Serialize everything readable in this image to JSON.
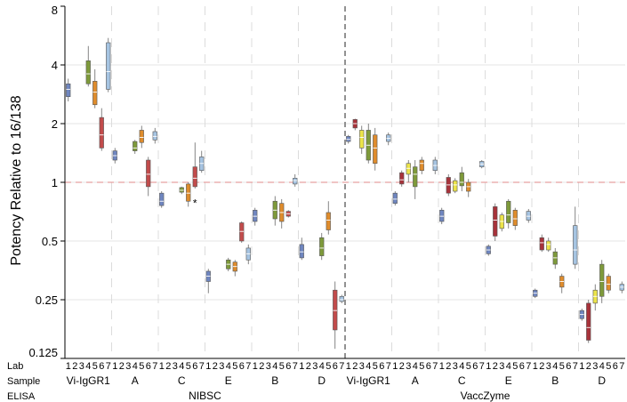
{
  "chart_data": {
    "type": "box",
    "ylabel": "Potency Relative to 16/138",
    "yscale": "log2",
    "ylim": [
      0.125,
      8
    ],
    "yticks": [
      "0.125",
      "0.25",
      "0.5",
      "1",
      "2",
      "4",
      "8"
    ],
    "yticks_values": [
      0.125,
      0.25,
      0.5,
      1,
      2,
      4,
      8
    ],
    "reference_line": 1,
    "row_labels": {
      "lab": "Lab",
      "sample": "Sample",
      "elisa": "ELISA"
    },
    "lab_codes": [
      "1",
      "2",
      "3",
      "4",
      "5",
      "6",
      "7"
    ],
    "lab_colors": [
      "#6f86c0",
      "#a8323a",
      "#ece44a",
      "#7e9a3a",
      "#df8c2c",
      "#c24b4b",
      "#a6c4e2"
    ],
    "elisas": [
      "NIBSC",
      "VaccZyme"
    ],
    "samples": [
      "Vi-IgGR1",
      "A",
      "C",
      "E",
      "B",
      "D"
    ],
    "groups": [
      {
        "elisa": "NIBSC",
        "sample": "Vi-IgGR1",
        "boxes": [
          {
            "lab": "1",
            "q1": 2.75,
            "med": 3.0,
            "q3": 3.2,
            "min": 2.6,
            "max": 3.4
          },
          null,
          null,
          {
            "lab": "4",
            "q1": 3.2,
            "med": 3.6,
            "q3": 4.2,
            "min": 3.1,
            "max": 5.0
          },
          {
            "lab": "5",
            "q1": 2.5,
            "med": 2.9,
            "q3": 3.3,
            "min": 2.4,
            "max": 3.8
          },
          {
            "lab": "6",
            "q1": 1.5,
            "med": 1.75,
            "q3": 2.15,
            "min": 1.45,
            "max": 2.4
          },
          {
            "lab": "7",
            "q1": 3.0,
            "med": 3.7,
            "q3": 5.2,
            "min": 2.9,
            "max": 5.5
          }
        ]
      },
      {
        "elisa": "NIBSC",
        "sample": "A",
        "boxes": [
          {
            "lab": "1",
            "q1": 1.3,
            "med": 1.37,
            "q3": 1.45,
            "min": 1.25,
            "max": 1.5
          },
          null,
          null,
          {
            "lab": "4",
            "q1": 1.45,
            "med": 1.5,
            "q3": 1.62,
            "min": 1.4,
            "max": 1.65
          },
          {
            "lab": "5",
            "q1": 1.6,
            "med": 1.7,
            "q3": 1.85,
            "min": 1.5,
            "max": 1.95
          },
          {
            "lab": "6",
            "q1": 0.95,
            "med": 1.1,
            "q3": 1.3,
            "min": 0.85,
            "max": 1.35
          },
          {
            "lab": "7",
            "q1": 1.65,
            "med": 1.72,
            "q3": 1.82,
            "min": 1.58,
            "max": 1.9
          }
        ]
      },
      {
        "elisa": "NIBSC",
        "sample": "C",
        "boxes": [
          {
            "lab": "1",
            "q1": 0.76,
            "med": 0.8,
            "q3": 0.88,
            "min": 0.74,
            "max": 0.9
          },
          null,
          null,
          {
            "lab": "4",
            "q1": 0.89,
            "med": 0.91,
            "q3": 0.94,
            "min": 0.87,
            "max": 0.95
          },
          {
            "lab": "5",
            "q1": 0.8,
            "med": 0.88,
            "q3": 0.98,
            "min": 0.75,
            "max": 1.0
          },
          {
            "lab": "6",
            "q1": 0.95,
            "med": 1.05,
            "q3": 1.2,
            "min": 0.93,
            "max": 1.6
          },
          {
            "lab": "7",
            "q1": 1.15,
            "med": 1.25,
            "q3": 1.35,
            "min": 1.12,
            "max": 1.45
          }
        ],
        "outliers": [
          {
            "lab": "6",
            "value": 0.78
          }
        ]
      },
      {
        "elisa": "NIBSC",
        "sample": "E",
        "boxes": [
          {
            "lab": "1",
            "q1": 0.31,
            "med": 0.33,
            "q3": 0.35,
            "min": 0.27,
            "max": 0.36
          },
          null,
          null,
          {
            "lab": "4",
            "q1": 0.36,
            "med": 0.38,
            "q3": 0.4,
            "min": 0.35,
            "max": 0.41
          },
          {
            "lab": "5",
            "q1": 0.35,
            "med": 0.37,
            "q3": 0.39,
            "min": 0.33,
            "max": 0.4
          },
          {
            "lab": "6",
            "q1": 0.5,
            "med": 0.56,
            "q3": 0.62,
            "min": 0.49,
            "max": 0.63
          },
          {
            "lab": "7",
            "q1": 0.4,
            "med": 0.43,
            "q3": 0.46,
            "min": 0.38,
            "max": 0.48
          }
        ]
      },
      {
        "elisa": "NIBSC",
        "sample": "B",
        "boxes": [
          {
            "lab": "1",
            "q1": 0.63,
            "med": 0.67,
            "q3": 0.72,
            "min": 0.6,
            "max": 0.74
          },
          null,
          null,
          {
            "lab": "4",
            "q1": 0.65,
            "med": 0.72,
            "q3": 0.8,
            "min": 0.6,
            "max": 0.85
          },
          {
            "lab": "5",
            "q1": 0.63,
            "med": 0.7,
            "q3": 0.78,
            "min": 0.58,
            "max": 0.82
          },
          {
            "lab": "6",
            "q1": 0.67,
            "med": 0.69,
            "q3": 0.71,
            "min": 0.66,
            "max": 0.72
          },
          {
            "lab": "7",
            "q1": 0.98,
            "med": 1.02,
            "q3": 1.05,
            "min": 0.95,
            "max": 1.1
          }
        ]
      },
      {
        "elisa": "NIBSC",
        "sample": "D",
        "boxes": [
          {
            "lab": "1",
            "q1": 0.41,
            "med": 0.44,
            "q3": 0.48,
            "min": 0.4,
            "max": 0.52
          },
          null,
          null,
          {
            "lab": "4",
            "q1": 0.42,
            "med": 0.46,
            "q3": 0.52,
            "min": 0.4,
            "max": 0.55
          },
          {
            "lab": "5",
            "q1": 0.57,
            "med": 0.64,
            "q3": 0.7,
            "min": 0.54,
            "max": 0.8
          },
          {
            "lab": "6",
            "q1": 0.175,
            "med": 0.22,
            "q3": 0.28,
            "min": 0.14,
            "max": 0.31
          },
          {
            "lab": "7",
            "q1": 0.245,
            "med": 0.25,
            "q3": 0.26,
            "min": 0.24,
            "max": 0.265
          }
        ]
      },
      {
        "elisa": "VaccZyme",
        "sample": "Vi-IgGR1",
        "boxes": [
          {
            "lab": "1",
            "q1": 1.62,
            "med": 1.66,
            "q3": 1.72,
            "min": 1.58,
            "max": 1.75
          },
          {
            "lab": "2",
            "q1": 1.9,
            "med": 2.0,
            "q3": 2.1,
            "min": 1.85,
            "max": 2.12
          },
          {
            "lab": "3",
            "q1": 1.5,
            "med": 1.7,
            "q3": 1.85,
            "min": 1.4,
            "max": 1.95
          },
          {
            "lab": "4",
            "q1": 1.3,
            "med": 1.55,
            "q3": 1.85,
            "min": 1.25,
            "max": 2.0
          },
          {
            "lab": "5",
            "q1": 1.25,
            "med": 1.5,
            "q3": 1.75,
            "min": 1.15,
            "max": 1.9
          },
          null,
          {
            "lab": "7",
            "q1": 1.62,
            "med": 1.68,
            "q3": 1.75,
            "min": 1.55,
            "max": 1.8
          }
        ]
      },
      {
        "elisa": "VaccZyme",
        "sample": "A",
        "boxes": [
          {
            "lab": "1",
            "q1": 0.78,
            "med": 0.82,
            "q3": 0.88,
            "min": 0.76,
            "max": 0.9
          },
          {
            "lab": "2",
            "q1": 0.98,
            "med": 1.03,
            "q3": 1.12,
            "min": 0.95,
            "max": 1.15
          },
          {
            "lab": "3",
            "q1": 1.1,
            "med": 1.18,
            "q3": 1.25,
            "min": 1.0,
            "max": 1.3
          },
          {
            "lab": "4",
            "q1": 0.95,
            "med": 1.1,
            "q3": 1.2,
            "min": 0.82,
            "max": 1.3
          },
          {
            "lab": "5",
            "q1": 1.15,
            "med": 1.25,
            "q3": 1.3,
            "min": 1.1,
            "max": 1.35
          },
          null,
          {
            "lab": "7",
            "q1": 1.15,
            "med": 1.22,
            "q3": 1.3,
            "min": 1.1,
            "max": 1.35
          }
        ]
      },
      {
        "elisa": "VaccZyme",
        "sample": "C",
        "boxes": [
          {
            "lab": "1",
            "q1": 0.63,
            "med": 0.67,
            "q3": 0.72,
            "min": 0.61,
            "max": 0.74
          },
          {
            "lab": "2",
            "q1": 0.88,
            "med": 0.97,
            "q3": 1.06,
            "min": 0.85,
            "max": 1.1
          },
          {
            "lab": "3",
            "q1": 0.9,
            "med": 0.97,
            "q3": 1.02,
            "min": 0.88,
            "max": 1.05
          },
          {
            "lab": "4",
            "q1": 0.96,
            "med": 1.0,
            "q3": 1.12,
            "min": 0.9,
            "max": 1.2
          },
          {
            "lab": "5",
            "q1": 0.9,
            "med": 0.95,
            "q3": 1.0,
            "min": 0.84,
            "max": 1.04
          },
          null,
          {
            "lab": "7",
            "q1": 1.2,
            "med": 1.24,
            "q3": 1.28,
            "min": 1.18,
            "max": 1.3
          }
        ]
      },
      {
        "elisa": "VaccZyme",
        "sample": "E",
        "boxes": [
          {
            "lab": "1",
            "q1": 0.43,
            "med": 0.45,
            "q3": 0.47,
            "min": 0.42,
            "max": 0.48
          },
          {
            "lab": "2",
            "q1": 0.53,
            "med": 0.64,
            "q3": 0.75,
            "min": 0.5,
            "max": 0.78
          },
          {
            "lab": "3",
            "q1": 0.58,
            "med": 0.63,
            "q3": 0.68,
            "min": 0.56,
            "max": 0.7
          },
          {
            "lab": "4",
            "q1": 0.62,
            "med": 0.68,
            "q3": 0.8,
            "min": 0.58,
            "max": 0.82
          },
          {
            "lab": "5",
            "q1": 0.6,
            "med": 0.65,
            "q3": 0.72,
            "min": 0.57,
            "max": 0.74
          },
          null,
          {
            "lab": "7",
            "q1": 0.64,
            "med": 0.67,
            "q3": 0.71,
            "min": 0.62,
            "max": 0.73
          }
        ]
      },
      {
        "elisa": "VaccZyme",
        "sample": "B",
        "boxes": [
          {
            "lab": "1",
            "q1": 0.26,
            "med": 0.27,
            "q3": 0.28,
            "min": 0.255,
            "max": 0.285
          },
          {
            "lab": "2",
            "q1": 0.45,
            "med": 0.49,
            "q3": 0.52,
            "min": 0.44,
            "max": 0.54
          },
          {
            "lab": "3",
            "q1": 0.45,
            "med": 0.48,
            "q3": 0.5,
            "min": 0.44,
            "max": 0.52
          },
          {
            "lab": "4",
            "q1": 0.38,
            "med": 0.41,
            "q3": 0.44,
            "min": 0.36,
            "max": 0.46
          },
          {
            "lab": "5",
            "q1": 0.29,
            "med": 0.31,
            "q3": 0.33,
            "min": 0.27,
            "max": 0.34
          },
          null,
          {
            "lab": "7",
            "q1": 0.38,
            "med": 0.45,
            "q3": 0.6,
            "min": 0.36,
            "max": 0.75
          }
        ]
      },
      {
        "elisa": "VaccZyme",
        "sample": "D",
        "boxes": [
          {
            "lab": "1",
            "q1": 0.2,
            "med": 0.21,
            "q3": 0.22,
            "min": 0.195,
            "max": 0.225
          },
          {
            "lab": "2",
            "q1": 0.155,
            "med": 0.18,
            "q3": 0.24,
            "min": 0.15,
            "max": 0.25
          },
          {
            "lab": "3",
            "q1": 0.24,
            "med": 0.26,
            "q3": 0.28,
            "min": 0.22,
            "max": 0.3
          },
          {
            "lab": "4",
            "q1": 0.26,
            "med": 0.31,
            "q3": 0.38,
            "min": 0.24,
            "max": 0.4
          },
          {
            "lab": "5",
            "q1": 0.28,
            "med": 0.3,
            "q3": 0.33,
            "min": 0.27,
            "max": 0.34
          },
          null,
          {
            "lab": "7",
            "q1": 0.28,
            "med": 0.29,
            "q3": 0.3,
            "min": 0.27,
            "max": 0.31
          }
        ]
      }
    ]
  }
}
